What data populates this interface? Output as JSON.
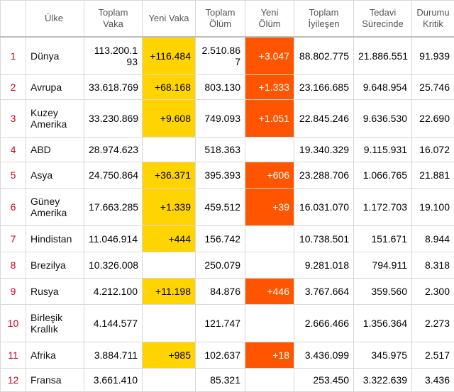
{
  "headers": {
    "num": "",
    "country": "Ülke",
    "total_cases": "Toplam Vaka",
    "new_cases": "Yeni Vaka",
    "total_deaths": "Toplam Ölüm",
    "new_deaths": "Yeni Ölüm",
    "recovered": "Toplam İyileşen",
    "active": "Tedavi Sürecinde",
    "critical": "Durumu Kritik"
  },
  "colors": {
    "new_cases_highlight": "#ffd400",
    "new_deaths_highlight": "#ff5500",
    "row_number": "#d0021b"
  },
  "rows": [
    {
      "num": "1",
      "country": "Dünya",
      "total_cases": "113.200.193",
      "new_cases": "+116.484",
      "total_deaths": "2.510.867",
      "new_deaths": "+3.047",
      "recovered": "88.802.775",
      "active": "21.886.551",
      "critical": "91.939"
    },
    {
      "num": "2",
      "country": "Avrupa",
      "total_cases": "33.618.769",
      "new_cases": "+68.168",
      "total_deaths": "803.130",
      "new_deaths": "+1.333",
      "recovered": "23.166.685",
      "active": "9.648.954",
      "critical": "25.746"
    },
    {
      "num": "3",
      "country": "Kuzey Amerika",
      "total_cases": "33.230.869",
      "new_cases": "+9.608",
      "total_deaths": "749.093",
      "new_deaths": "+1.051",
      "recovered": "22.845.246",
      "active": "9.636.530",
      "critical": "22.690"
    },
    {
      "num": "4",
      "country": "ABD",
      "total_cases": "28.974.623",
      "new_cases": "",
      "total_deaths": "518.363",
      "new_deaths": "",
      "recovered": "19.340.329",
      "active": "9.115.931",
      "critical": "16.072"
    },
    {
      "num": "5",
      "country": "Asya",
      "total_cases": "24.750.864",
      "new_cases": "+36.371",
      "total_deaths": "395.393",
      "new_deaths": "+606",
      "recovered": "23.288.706",
      "active": "1.066.765",
      "critical": "21.881"
    },
    {
      "num": "6",
      "country": "Güney Amerika",
      "total_cases": "17.663.285",
      "new_cases": "+1.339",
      "total_deaths": "459.512",
      "new_deaths": "+39",
      "recovered": "16.031.070",
      "active": "1.172.703",
      "critical": "19.100"
    },
    {
      "num": "7",
      "country": "Hindistan",
      "total_cases": "11.046.914",
      "new_cases": "+444",
      "total_deaths": "156.742",
      "new_deaths": "",
      "recovered": "10.738.501",
      "active": "151.671",
      "critical": "8.944"
    },
    {
      "num": "8",
      "country": "Brezilya",
      "total_cases": "10.326.008",
      "new_cases": "",
      "total_deaths": "250.079",
      "new_deaths": "",
      "recovered": "9.281.018",
      "active": "794.911",
      "critical": "8.318"
    },
    {
      "num": "9",
      "country": "Rusya",
      "total_cases": "4.212.100",
      "new_cases": "+11.198",
      "total_deaths": "84.876",
      "new_deaths": "+446",
      "recovered": "3.767.664",
      "active": "359.560",
      "critical": "2.300"
    },
    {
      "num": "10",
      "country": "Birleşik Krallık",
      "total_cases": "4.144.577",
      "new_cases": "",
      "total_deaths": "121.747",
      "new_deaths": "",
      "recovered": "2.666.466",
      "active": "1.356.364",
      "critical": "2.273"
    },
    {
      "num": "11",
      "country": "Afrika",
      "total_cases": "3.884.711",
      "new_cases": "+985",
      "total_deaths": "102.637",
      "new_deaths": "+18",
      "recovered": "3.436.099",
      "active": "345.975",
      "critical": "2.517"
    },
    {
      "num": "12",
      "country": "Fransa",
      "total_cases": "3.661.410",
      "new_cases": "",
      "total_deaths": "85.321",
      "new_deaths": "",
      "recovered": "253.450",
      "active": "3.322.639",
      "critical": "3.436"
    }
  ]
}
